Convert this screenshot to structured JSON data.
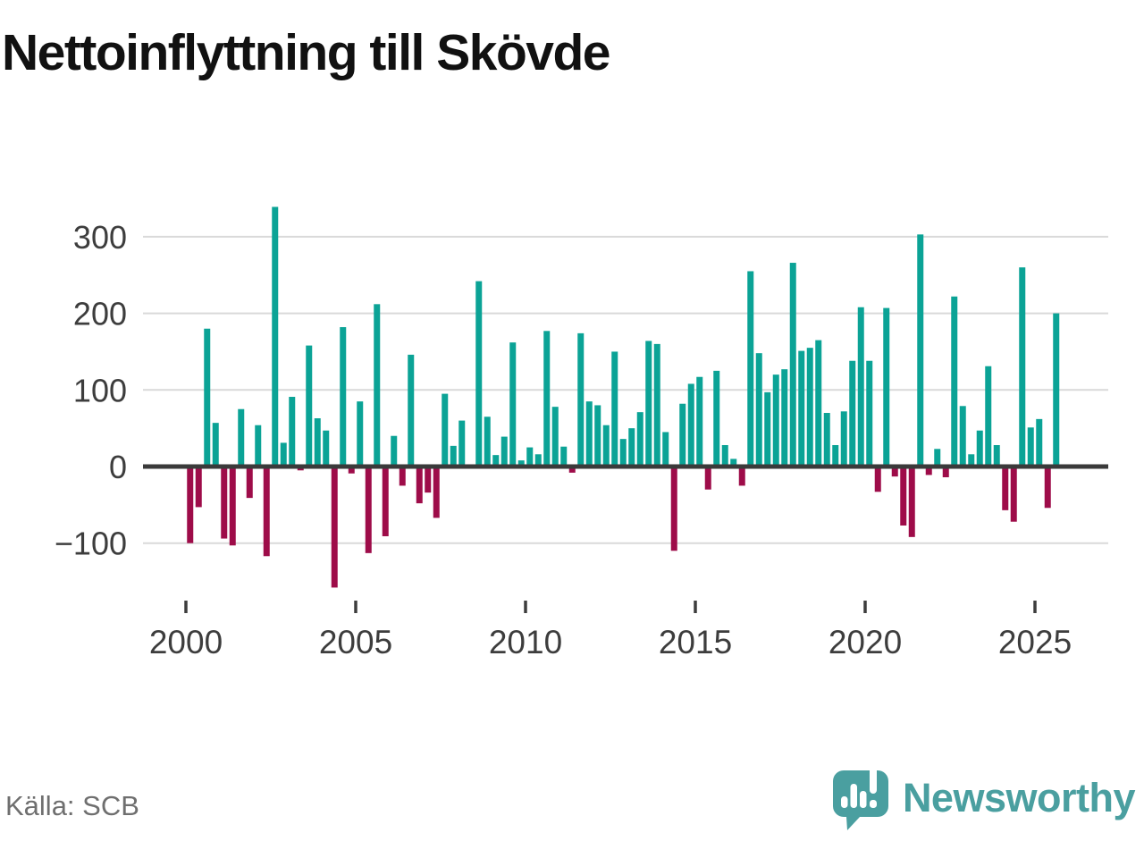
{
  "title": "Nettoinflyttning till Skövde",
  "source": "Källa: SCB",
  "logo": {
    "text": "Newsworthy",
    "color": "#4a9fa0"
  },
  "chart_data": {
    "type": "bar",
    "title": "Nettoinflyttning till Skövde",
    "xlabel": "",
    "ylabel": "",
    "frequency": "quarterly",
    "start_year": 2000,
    "start_quarter": 1,
    "x_tick_years": [
      2000,
      2005,
      2010,
      2015,
      2020,
      2025
    ],
    "x_tick_labels": [
      "2000",
      "2005",
      "2010",
      "2015",
      "2020",
      "2025"
    ],
    "y_ticks": [
      300,
      200,
      100,
      0,
      -100
    ],
    "y_tick_labels": [
      "300",
      "200",
      "100",
      "0",
      "−100"
    ],
    "ylim": [
      -170,
      350
    ],
    "grid": true,
    "legend": false,
    "zero_line": true,
    "positive_color": "#0ba396",
    "negative_color": "#9e0c49",
    "grid_color": "#d9d9d9",
    "axis_color": "#3a3a3a",
    "tick_label_color": "#3d3d3d",
    "values": [
      -100,
      -53,
      180,
      57,
      -94,
      -103,
      75,
      -41,
      54,
      -117,
      339,
      31,
      91,
      -5,
      158,
      63,
      47,
      -158,
      182,
      -9,
      85,
      -113,
      212,
      -91,
      40,
      -25,
      146,
      -48,
      -34,
      -67,
      95,
      27,
      60,
      0,
      242,
      65,
      15,
      39,
      162,
      8,
      25,
      16,
      177,
      78,
      26,
      -8,
      174,
      85,
      80,
      54,
      150,
      36,
      50,
      71,
      164,
      160,
      45,
      -110,
      82,
      108,
      117,
      -30,
      125,
      28,
      10,
      -25,
      255,
      148,
      97,
      120,
      127,
      266,
      151,
      155,
      165,
      70,
      28,
      72,
      138,
      208,
      138,
      -33,
      207,
      -13,
      -77,
      -92,
      303,
      -11,
      23,
      -14,
      222,
      79,
      16,
      47,
      131,
      28,
      -57,
      -72,
      260,
      51,
      62,
      -54,
      200
    ]
  }
}
